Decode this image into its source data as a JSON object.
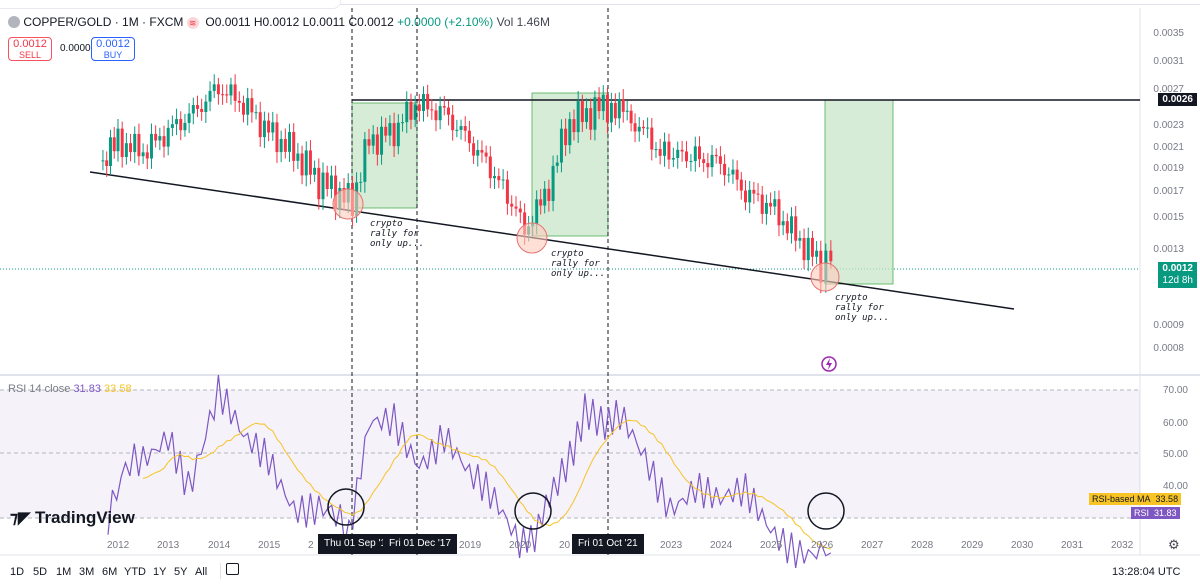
{
  "header": {
    "symbol": "COPPER/GOLD · 1M · FXCM",
    "open": "O0.0011",
    "high": "H0.0012",
    "low": "L0.0011",
    "close": "C0.0012",
    "change": "+0.0000 (+2.10%)",
    "volume": "Vol 1.46M"
  },
  "trade": {
    "sell_price": "0.0012",
    "sell_label": "SELL",
    "spread": "0.0000",
    "buy_price": "0.0012",
    "buy_label": "BUY"
  },
  "price_axis": [
    "0.0035",
    "0.0031",
    "0.0027",
    "0.0023",
    "0.0021",
    "0.0019",
    "0.0017",
    "0.0015",
    "0.0013",
    "0.0011",
    "0.0009",
    "0.0008"
  ],
  "price_labels": {
    "level": "0.0026",
    "current": "0.0012",
    "countdown": "12d 8h"
  },
  "annotations": [
    "crypto\nrally for\nonly up...",
    "crypto\nrally for\nonly up...",
    "crypto\nrally for\nonly up..."
  ],
  "rsi": {
    "legend_name": "RSI 14 close",
    "rsi_value": "31.83",
    "ma_value": "33.58",
    "axis": [
      "70.00",
      "60.00",
      "50.00",
      "40.00"
    ],
    "ma_label": "RSI-based MA",
    "rsi_label": "RSI"
  },
  "time_axis": [
    "2012",
    "2013",
    "2014",
    "2015",
    "2019",
    "2020",
    "2023",
    "2024",
    "2025",
    "2026",
    "2027",
    "2028",
    "2029",
    "2030",
    "2031",
    "2032"
  ],
  "time_markers": [
    "Thu 01 Sep '16",
    "Fri 01 Dec '17",
    "Fri 01 Oct '21"
  ],
  "logo": "TradingView",
  "ranges": [
    "1D",
    "5D",
    "1M",
    "3M",
    "6M",
    "YTD",
    "1Y",
    "5Y",
    "All"
  ],
  "clock": "13:28:04 UTC",
  "colors": {
    "up": "#089981",
    "down": "#f23645",
    "rsi_line": "#7e57c2",
    "rsi_ma": "#f7c325",
    "zone_fill": "#c8e6c9"
  },
  "chart_data": {
    "type": "candlestick",
    "title": "COPPER/GOLD · 1M · FXCM",
    "x_range": [
      2012,
      2032
    ],
    "y_range": [
      0.0008,
      0.0035
    ],
    "y_scale": "log",
    "approx_monthly_close": [
      [
        2011.7,
        0.00185
      ],
      [
        2012.0,
        0.0021
      ],
      [
        2012.5,
        0.002
      ],
      [
        2013.0,
        0.0022
      ],
      [
        2013.5,
        0.0024
      ],
      [
        2014.0,
        0.0027
      ],
      [
        2014.5,
        0.0025
      ],
      [
        2015.0,
        0.0022
      ],
      [
        2015.5,
        0.002
      ],
      [
        2016.0,
        0.00175
      ],
      [
        2016.67,
        0.00158
      ],
      [
        2017.0,
        0.0021
      ],
      [
        2017.5,
        0.0022
      ],
      [
        2017.92,
        0.0025
      ],
      [
        2018.5,
        0.0024
      ],
      [
        2019.0,
        0.0021
      ],
      [
        2019.5,
        0.0018
      ],
      [
        2020.1,
        0.0014
      ],
      [
        2020.5,
        0.0016
      ],
      [
        2021.0,
        0.0023
      ],
      [
        2021.75,
        0.0025
      ],
      [
        2022.3,
        0.0023
      ],
      [
        2022.8,
        0.002
      ],
      [
        2023.5,
        0.00195
      ],
      [
        2024.0,
        0.0019
      ],
      [
        2024.5,
        0.00165
      ],
      [
        2025.0,
        0.00155
      ],
      [
        2025.5,
        0.00135
      ],
      [
        2026.0,
        0.00118
      ],
      [
        2026.2,
        0.0012
      ]
    ],
    "horizontal_level": 0.0026,
    "support_trendline": [
      [
        2011.7,
        0.00185
      ],
      [
        2031.0,
        0.00098
      ]
    ],
    "rsi_series": {
      "name": "RSI",
      "approx_points": [
        [
          2011.8,
          42
        ],
        [
          2012.5,
          55
        ],
        [
          2013.0,
          62
        ],
        [
          2013.4,
          50
        ],
        [
          2014.0,
          67
        ],
        [
          2014.5,
          57
        ],
        [
          2015.0,
          55
        ],
        [
          2015.5,
          45
        ],
        [
          2016.0,
          43
        ],
        [
          2016.6,
          34
        ],
        [
          2017.0,
          60
        ],
        [
          2017.5,
          64
        ],
        [
          2018.0,
          55
        ],
        [
          2018.5,
          60
        ],
        [
          2019.0,
          48
        ],
        [
          2019.5,
          42
        ],
        [
          2020.0,
          35
        ],
        [
          2020.3,
          32
        ],
        [
          2020.6,
          45
        ],
        [
          2021.0,
          55
        ],
        [
          2021.3,
          68
        ],
        [
          2021.7,
          64
        ],
        [
          2022.0,
          62
        ],
        [
          2022.5,
          55
        ],
        [
          2023.0,
          45
        ],
        [
          2023.5,
          48
        ],
        [
          2024.0,
          42
        ],
        [
          2024.5,
          44
        ],
        [
          2025.0,
          38
        ],
        [
          2025.5,
          35
        ],
        [
          2026.0,
          33
        ],
        [
          2026.2,
          31.83
        ]
      ]
    },
    "rsi_ma_value": 33.58
  }
}
